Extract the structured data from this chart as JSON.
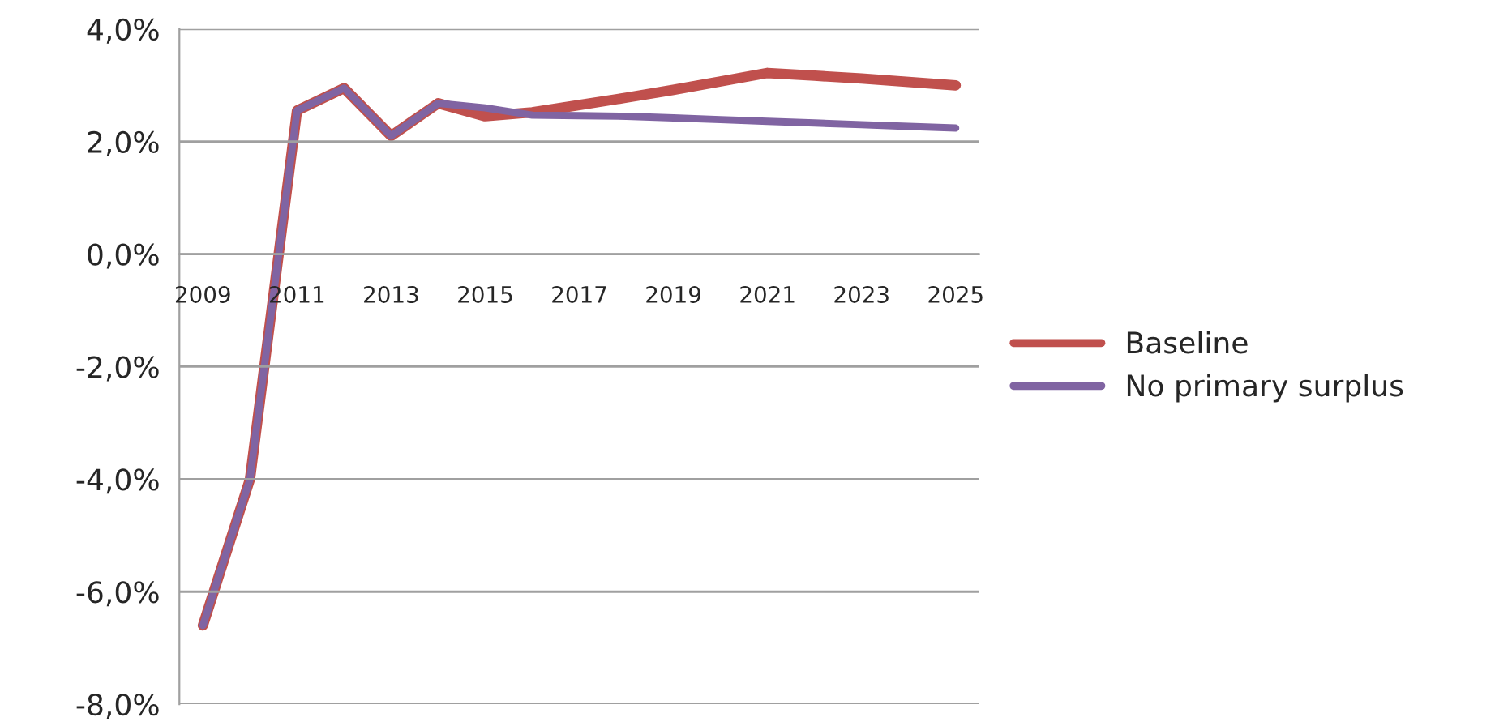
{
  "chart_data": {
    "type": "line",
    "categories": [
      "2009",
      null,
      "2011",
      null,
      "2013",
      null,
      "2015",
      null,
      "2017",
      null,
      "2019",
      null,
      "2021",
      null,
      "2023",
      null,
      "2025"
    ],
    "series": [
      {
        "name": "Baseline",
        "color": "#c0504d",
        "values": [
          -6.6,
          -4.0,
          2.55,
          2.95,
          2.1,
          2.68,
          2.45,
          2.52,
          2.65,
          2.78,
          2.92,
          3.07,
          3.22,
          3.17,
          3.12,
          3.06,
          3.0
        ]
      },
      {
        "name": "No primary surplus",
        "color": "#8064a2",
        "values": [
          -6.6,
          -4.0,
          2.55,
          2.95,
          2.1,
          2.68,
          2.6,
          2.47,
          2.46,
          2.45,
          2.42,
          2.39,
          2.36,
          2.33,
          2.3,
          2.27,
          2.24
        ]
      }
    ],
    "ylim": [
      -8,
      4
    ],
    "yticks": [
      {
        "value": -8,
        "label": "-8,0%"
      },
      {
        "value": -6,
        "label": "-6,0%"
      },
      {
        "value": -4,
        "label": "-4,0%"
      },
      {
        "value": -2,
        "label": "-2,0%"
      },
      {
        "value": 0,
        "label": "0,0%"
      },
      {
        "value": 2,
        "label": "2,0%"
      },
      {
        "value": 4,
        "label": "4,0%"
      }
    ],
    "grid": "y",
    "legend": "right",
    "marker": "none",
    "line_style": "solid"
  }
}
